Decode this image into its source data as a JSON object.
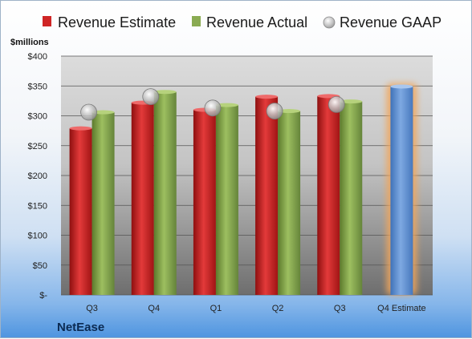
{
  "chart_data": {
    "type": "bar",
    "unit_label": "$millions",
    "brand": "NetEase",
    "categories": [
      "Q3",
      "Q4",
      "Q1",
      "Q2",
      "Q3",
      "Q4 Estimate"
    ],
    "y_ticks": [
      "$-",
      "$50",
      "$100",
      "$150",
      "$200",
      "$250",
      "$300",
      "$350",
      "$400"
    ],
    "ylim": [
      0,
      400
    ],
    "grid": true,
    "legend_position": "top",
    "series": [
      {
        "name": "Revenue Estimate",
        "kind": "bar",
        "color": "#d42a2a",
        "values": [
          279,
          322,
          310,
          332,
          333,
          null
        ]
      },
      {
        "name": "Revenue Actual",
        "kind": "bar",
        "color": "#8aab52",
        "values": [
          306,
          340,
          318,
          308,
          324,
          null
        ]
      },
      {
        "name": "Revenue GAAP",
        "kind": "marker",
        "color": "#c8c8c8",
        "values": [
          306,
          332,
          313,
          308,
          319,
          null
        ]
      }
    ],
    "estimate_bar": {
      "category_index": 5,
      "value": 349,
      "color": "#6a9bd8",
      "glow": "#f2a65a"
    }
  }
}
